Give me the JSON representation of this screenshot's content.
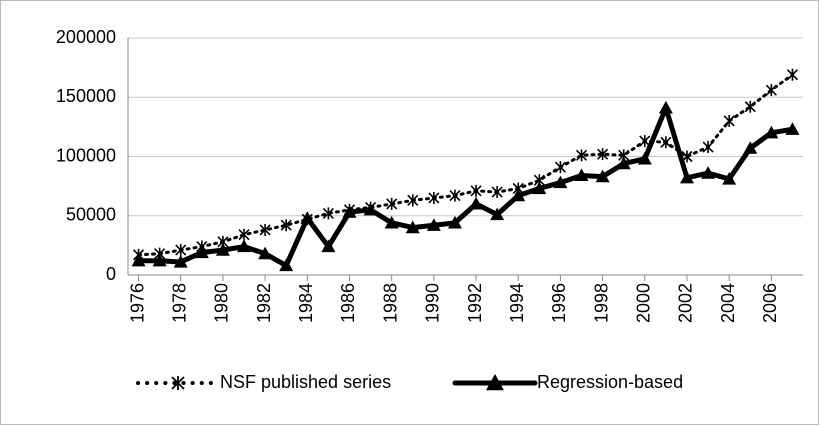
{
  "chart_data": {
    "type": "line",
    "x": [
      1976,
      1977,
      1978,
      1979,
      1980,
      1981,
      1982,
      1983,
      1984,
      1985,
      1986,
      1987,
      1988,
      1989,
      1990,
      1991,
      1992,
      1993,
      1994,
      1995,
      1996,
      1997,
      1998,
      1999,
      2000,
      2001,
      2002,
      2003,
      2004,
      2005,
      2006,
      2007
    ],
    "series": [
      {
        "name": "NSF published series",
        "color": "#000000",
        "style": "dotted-asterisk",
        "values": [
          17000,
          18000,
          21000,
          24000,
          28000,
          34000,
          38000,
          42000,
          47000,
          52000,
          55000,
          57000,
          60000,
          63000,
          65000,
          67000,
          71000,
          70000,
          73000,
          80000,
          91000,
          101000,
          102000,
          101000,
          113000,
          112000,
          100000,
          108000,
          130000,
          142000,
          156000,
          169000
        ]
      },
      {
        "name": "Regression-based",
        "color": "#000000",
        "style": "thick-triangle",
        "values": [
          12000,
          12000,
          11000,
          19000,
          21000,
          24000,
          18000,
          8000,
          48000,
          24000,
          53000,
          55000,
          44000,
          40000,
          42000,
          44000,
          60000,
          51000,
          67000,
          73000,
          78000,
          84000,
          83000,
          94000,
          98000,
          141000,
          82000,
          86000,
          81000,
          107000,
          120000,
          123000
        ]
      }
    ],
    "xlim": [
      1975.5,
      2007.5
    ],
    "xticks": [
      1976,
      1978,
      1980,
      1982,
      1984,
      1986,
      1988,
      1990,
      1992,
      1994,
      1996,
      1998,
      2000,
      2002,
      2004,
      2006
    ],
    "ylim": [
      0,
      200000
    ],
    "yticks": [
      0,
      50000,
      100000,
      150000,
      200000
    ],
    "grid": true,
    "legend": "bottom"
  }
}
